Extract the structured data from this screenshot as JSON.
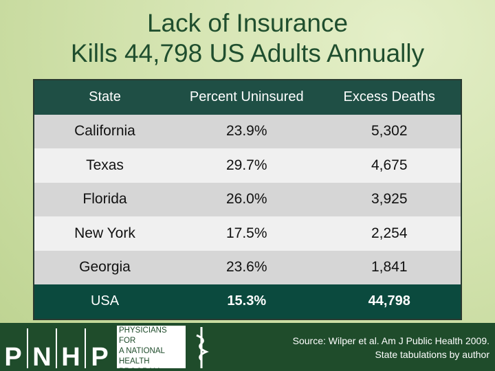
{
  "title": {
    "lines": [
      "Lack of Insurance",
      "Kills 44,798 US Adults Annually"
    ]
  },
  "table": {
    "header": [
      "State",
      "Percent Uninsured",
      "Excess Deaths"
    ],
    "rows": [
      [
        "California",
        "23.9%",
        "5,302"
      ],
      [
        "Texas",
        "29.7%",
        "4,675"
      ],
      [
        "Florida",
        "26.0%",
        "3,925"
      ],
      [
        "New York",
        "17.5%",
        "2,254"
      ],
      [
        "Georgia",
        "23.6%",
        "1,841"
      ]
    ],
    "total": [
      "USA",
      "15.3%",
      "44,798"
    ]
  },
  "logo": {
    "letters": [
      "P",
      "N",
      "H",
      "P"
    ],
    "name_lines": [
      "PHYSICIANS FOR",
      "A NATIONAL",
      "HEALTH",
      "PROGRAM"
    ]
  },
  "source": {
    "lines": [
      "Source: Wilper et al. Am J Public Health 2009.",
      "State tabulations by author"
    ]
  }
}
